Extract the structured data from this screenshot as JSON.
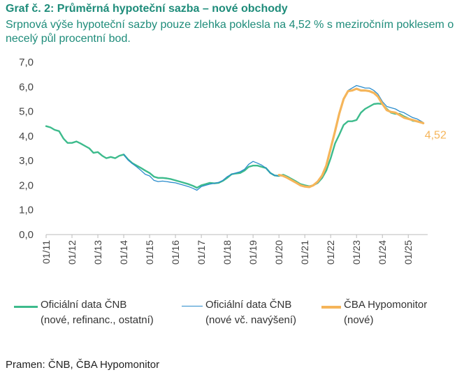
{
  "header": {
    "title": "Graf č. 2: Průměrná hypoteční sazba – nové obchody",
    "subtitle": "Srpnová výše hypoteční sazby pouze zlehka poklesla na 4,52 % s meziročním poklesem o necelý půl procentní bod."
  },
  "source": "Pramen: ČNB, ČBA Hypomonitor",
  "chart_data": {
    "type": "line",
    "title": "Graf č. 2: Průměrná hypoteční sazba – nové obchody",
    "ylim": [
      0,
      7
    ],
    "yticks": [
      "0,0",
      "1,0",
      "2,0",
      "3,0",
      "4,0",
      "5,0",
      "6,0",
      "7,0"
    ],
    "xlim": [
      2011.0,
      2025.75
    ],
    "xticks": [
      "01/11",
      "01/12",
      "01/13",
      "01/14",
      "01/15",
      "01/16",
      "01/17",
      "01/18",
      "01/19",
      "01/20",
      "01/21",
      "01/22",
      "01/23",
      "01/24",
      "01/25"
    ],
    "grid": false,
    "legend_position": "bottom",
    "end_label": "4,52",
    "series": [
      {
        "name": "Oficiální data ČNB (nové, refinanc., ostatní)",
        "color": "#3dbb8c",
        "points": [
          [
            2011.0,
            4.4
          ],
          [
            2011.17,
            4.35
          ],
          [
            2011.33,
            4.25
          ],
          [
            2011.5,
            4.2
          ],
          [
            2011.67,
            3.9
          ],
          [
            2011.83,
            3.72
          ],
          [
            2012.0,
            3.72
          ],
          [
            2012.17,
            3.78
          ],
          [
            2012.33,
            3.7
          ],
          [
            2012.5,
            3.6
          ],
          [
            2012.67,
            3.5
          ],
          [
            2012.83,
            3.32
          ],
          [
            2013.0,
            3.35
          ],
          [
            2013.17,
            3.2
          ],
          [
            2013.33,
            3.1
          ],
          [
            2013.5,
            3.15
          ],
          [
            2013.67,
            3.1
          ],
          [
            2013.83,
            3.2
          ],
          [
            2014.0,
            3.25
          ],
          [
            2014.17,
            3.05
          ],
          [
            2014.33,
            2.9
          ],
          [
            2014.5,
            2.8
          ],
          [
            2014.67,
            2.7
          ],
          [
            2014.83,
            2.6
          ],
          [
            2015.0,
            2.5
          ],
          [
            2015.17,
            2.35
          ],
          [
            2015.33,
            2.3
          ],
          [
            2015.5,
            2.3
          ],
          [
            2015.67,
            2.28
          ],
          [
            2015.83,
            2.25
          ],
          [
            2016.0,
            2.2
          ],
          [
            2016.17,
            2.15
          ],
          [
            2016.33,
            2.1
          ],
          [
            2016.5,
            2.05
          ],
          [
            2016.67,
            1.98
          ],
          [
            2016.83,
            1.9
          ],
          [
            2017.0,
            2.0
          ],
          [
            2017.17,
            2.05
          ],
          [
            2017.33,
            2.1
          ],
          [
            2017.5,
            2.08
          ],
          [
            2017.67,
            2.1
          ],
          [
            2017.83,
            2.18
          ],
          [
            2018.0,
            2.3
          ],
          [
            2018.17,
            2.45
          ],
          [
            2018.33,
            2.48
          ],
          [
            2018.5,
            2.5
          ],
          [
            2018.67,
            2.6
          ],
          [
            2018.83,
            2.75
          ],
          [
            2019.0,
            2.8
          ],
          [
            2019.17,
            2.8
          ],
          [
            2019.33,
            2.75
          ],
          [
            2019.5,
            2.7
          ],
          [
            2019.67,
            2.5
          ],
          [
            2019.83,
            2.4
          ],
          [
            2020.0,
            2.38
          ],
          [
            2020.17,
            2.43
          ],
          [
            2020.33,
            2.35
          ],
          [
            2020.5,
            2.25
          ],
          [
            2020.67,
            2.15
          ],
          [
            2020.83,
            2.05
          ],
          [
            2021.0,
            2.0
          ],
          [
            2021.17,
            1.96
          ],
          [
            2021.33,
            2.0
          ],
          [
            2021.5,
            2.1
          ],
          [
            2021.67,
            2.3
          ],
          [
            2021.83,
            2.6
          ],
          [
            2022.0,
            3.1
          ],
          [
            2022.17,
            3.7
          ],
          [
            2022.33,
            4.05
          ],
          [
            2022.5,
            4.45
          ],
          [
            2022.67,
            4.6
          ],
          [
            2022.83,
            4.6
          ],
          [
            2023.0,
            4.65
          ],
          [
            2023.17,
            4.95
          ],
          [
            2023.33,
            5.1
          ],
          [
            2023.5,
            5.2
          ],
          [
            2023.67,
            5.3
          ],
          [
            2023.83,
            5.32
          ],
          [
            2024.0,
            5.3
          ],
          [
            2024.17,
            5.1
          ],
          [
            2024.33,
            4.95
          ],
          [
            2024.5,
            4.9
          ],
          [
            2024.67,
            4.9
          ],
          [
            2024.83,
            4.8
          ],
          [
            2025.0,
            4.72
          ],
          [
            2025.17,
            4.62
          ],
          [
            2025.33,
            4.6
          ],
          [
            2025.5,
            4.55
          ],
          [
            2025.58,
            4.52
          ]
        ]
      },
      {
        "name": "Oficiální data ČNB (nové vč. navýšení)",
        "color": "#2a8ccc",
        "points": [
          [
            2014.0,
            3.25
          ],
          [
            2014.17,
            3.02
          ],
          [
            2014.33,
            2.88
          ],
          [
            2014.5,
            2.75
          ],
          [
            2014.67,
            2.6
          ],
          [
            2014.83,
            2.45
          ],
          [
            2015.0,
            2.38
          ],
          [
            2015.17,
            2.2
          ],
          [
            2015.33,
            2.15
          ],
          [
            2015.5,
            2.17
          ],
          [
            2015.67,
            2.15
          ],
          [
            2015.83,
            2.12
          ],
          [
            2016.0,
            2.1
          ],
          [
            2016.17,
            2.05
          ],
          [
            2016.33,
            2.0
          ],
          [
            2016.5,
            1.95
          ],
          [
            2016.67,
            1.88
          ],
          [
            2016.83,
            1.8
          ],
          [
            2017.0,
            1.95
          ],
          [
            2017.17,
            2.0
          ],
          [
            2017.33,
            2.05
          ],
          [
            2017.5,
            2.08
          ],
          [
            2017.67,
            2.12
          ],
          [
            2017.83,
            2.2
          ],
          [
            2018.0,
            2.35
          ],
          [
            2018.17,
            2.45
          ],
          [
            2018.33,
            2.5
          ],
          [
            2018.5,
            2.55
          ],
          [
            2018.67,
            2.65
          ],
          [
            2018.83,
            2.85
          ],
          [
            2019.0,
            2.97
          ],
          [
            2019.17,
            2.9
          ],
          [
            2019.33,
            2.82
          ],
          [
            2019.5,
            2.7
          ],
          [
            2019.67,
            2.5
          ],
          [
            2019.83,
            2.4
          ],
          [
            2020.0,
            2.38
          ],
          [
            2020.17,
            2.4
          ],
          [
            2020.33,
            2.32
          ],
          [
            2020.5,
            2.22
          ],
          [
            2020.67,
            2.12
          ],
          [
            2020.83,
            2.02
          ],
          [
            2021.0,
            1.97
          ],
          [
            2021.17,
            1.93
          ],
          [
            2021.33,
            1.98
          ],
          [
            2021.5,
            2.1
          ],
          [
            2021.67,
            2.35
          ],
          [
            2021.83,
            2.75
          ],
          [
            2022.0,
            3.4
          ],
          [
            2022.17,
            4.3
          ],
          [
            2022.33,
            4.9
          ],
          [
            2022.5,
            5.5
          ],
          [
            2022.67,
            5.85
          ],
          [
            2022.83,
            5.95
          ],
          [
            2023.0,
            6.05
          ],
          [
            2023.17,
            6.0
          ],
          [
            2023.33,
            5.95
          ],
          [
            2023.5,
            5.95
          ],
          [
            2023.67,
            5.85
          ],
          [
            2023.83,
            5.7
          ],
          [
            2024.0,
            5.4
          ],
          [
            2024.17,
            5.2
          ],
          [
            2024.33,
            5.15
          ],
          [
            2024.5,
            5.1
          ],
          [
            2024.67,
            5.0
          ],
          [
            2024.83,
            4.95
          ],
          [
            2025.0,
            4.85
          ],
          [
            2025.17,
            4.75
          ],
          [
            2025.33,
            4.7
          ],
          [
            2025.5,
            4.6
          ],
          [
            2025.58,
            4.55
          ]
        ]
      },
      {
        "name": "ČBA Hypomonitor (nové)",
        "color": "#f5b55a",
        "points": [
          [
            2020.0,
            2.42
          ],
          [
            2020.17,
            2.38
          ],
          [
            2020.33,
            2.3
          ],
          [
            2020.5,
            2.2
          ],
          [
            2020.67,
            2.1
          ],
          [
            2020.83,
            2.0
          ],
          [
            2021.0,
            1.95
          ],
          [
            2021.17,
            1.93
          ],
          [
            2021.33,
            2.0
          ],
          [
            2021.5,
            2.15
          ],
          [
            2021.67,
            2.4
          ],
          [
            2021.83,
            2.8
          ],
          [
            2022.0,
            3.5
          ],
          [
            2022.17,
            4.2
          ],
          [
            2022.33,
            4.9
          ],
          [
            2022.5,
            5.5
          ],
          [
            2022.67,
            5.82
          ],
          [
            2022.83,
            5.85
          ],
          [
            2023.0,
            5.92
          ],
          [
            2023.17,
            5.85
          ],
          [
            2023.33,
            5.85
          ],
          [
            2023.5,
            5.82
          ],
          [
            2023.67,
            5.75
          ],
          [
            2023.83,
            5.6
          ],
          [
            2024.0,
            5.3
          ],
          [
            2024.17,
            5.05
          ],
          [
            2024.33,
            4.98
          ],
          [
            2024.5,
            4.95
          ],
          [
            2024.67,
            4.85
          ],
          [
            2024.83,
            4.75
          ],
          [
            2025.0,
            4.7
          ],
          [
            2025.17,
            4.65
          ],
          [
            2025.33,
            4.6
          ],
          [
            2025.5,
            4.55
          ],
          [
            2025.58,
            4.52
          ]
        ]
      }
    ]
  },
  "legend": [
    {
      "line1": "Oficiální data ČNB",
      "line2": "(nové, refinanc., ostatní)",
      "color": "#3dbb8c"
    },
    {
      "line1": "Oficiální data ČNB",
      "line2": "(nové vč. navýšení)",
      "color": "#2a8ccc"
    },
    {
      "line1": "ČBA Hypomonitor",
      "line2": "(nové)",
      "color": "#f5b55a"
    }
  ]
}
